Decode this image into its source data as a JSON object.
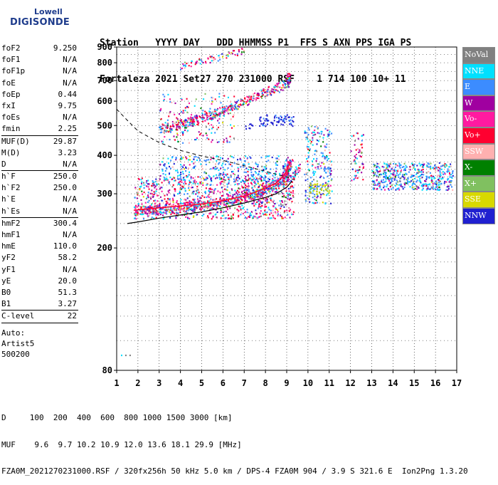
{
  "logo": {
    "line1": "Lowell",
    "line2": "DIGISONDE"
  },
  "header": {
    "line1": "Station   YYYY DAY   DDD HHMMSS P1  FFS S AXN PPS IGA PS",
    "line2": "Fortaleza 2021 Set27 270 231000 RSF    1 714 100 10+ 11"
  },
  "params": [
    [
      {
        "k": "foF2",
        "v": "9.250"
      },
      {
        "k": "foF1",
        "v": "N/A"
      },
      {
        "k": "foF1p",
        "v": "N/A"
      },
      {
        "k": "foE",
        "v": "N/A"
      },
      {
        "k": "foEp",
        "v": "0.44"
      },
      {
        "k": "fxI",
        "v": "9.75"
      },
      {
        "k": "foEs",
        "v": "N/A"
      },
      {
        "k": "fmin",
        "v": "2.25"
      }
    ],
    [
      {
        "k": "MUF(D)",
        "v": "29.87"
      },
      {
        "k": "M(D)",
        "v": "3.23"
      },
      {
        "k": "D",
        "v": "N/A"
      }
    ],
    [
      {
        "k": "h`F",
        "v": "250.0"
      },
      {
        "k": "h`F2",
        "v": "250.0"
      },
      {
        "k": "h`E",
        "v": "N/A"
      },
      {
        "k": "h`Es",
        "v": "N/A"
      }
    ],
    [
      {
        "k": "hmF2",
        "v": "300.4"
      },
      {
        "k": "hmF1",
        "v": "N/A"
      },
      {
        "k": "hmE",
        "v": "110.0"
      },
      {
        "k": "yF2",
        "v": "58.2"
      },
      {
        "k": "yF1",
        "v": "N/A"
      },
      {
        "k": "yE",
        "v": "20.0"
      },
      {
        "k": "B0",
        "v": "51.3"
      },
      {
        "k": "B1",
        "v": "3.27"
      }
    ],
    [
      {
        "k": "C-level",
        "v": "22"
      }
    ]
  ],
  "auto": {
    "line1": "Auto:",
    "line2": "Artist5",
    "line3": "500200"
  },
  "legend": [
    {
      "label": "NoVal",
      "color": "#808080"
    },
    {
      "label": "NNE",
      "color": "#00e0ff"
    },
    {
      "label": "E",
      "color": "#3c8cff"
    },
    {
      "label": "W",
      "color": "#a000a0"
    },
    {
      "label": "Vo-",
      "color": "#ff1aa0"
    },
    {
      "label": "Vo+",
      "color": "#ff0030"
    },
    {
      "label": "SSW",
      "color": "#ffb0b0"
    },
    {
      "label": "X-",
      "color": "#008000"
    },
    {
      "label": "X+",
      "color": "#80c060"
    },
    {
      "label": "SSE",
      "color": "#d8d800"
    },
    {
      "label": "NNW",
      "color": "#2020d0"
    }
  ],
  "footer": {
    "line1": "D     100  200  400  600  800 1000 1500 3000 [km]",
    "line2": "MUF    9.6  9.7 10.2 10.9 12.0 13.6 18.1 29.9 [MHz]",
    "line3": "FZA0M_2021270231000.RSF / 320fx256h 50 kHz 5.0 km / DPS-4 FZA0M 904 / 3.9 S 321.6 E  Ion2Png 1.3.20"
  },
  "chart_data": {
    "type": "scatter",
    "x": {
      "min": 1,
      "max": 17,
      "ticks": [
        1,
        2,
        3,
        4,
        5,
        6,
        7,
        8,
        9,
        10,
        11,
        12,
        13,
        14,
        15,
        16,
        17
      ],
      "unit": "MHz"
    },
    "y": {
      "min": 80,
      "max": 900,
      "ticks": [
        80,
        200,
        300,
        400,
        500,
        600,
        700,
        800,
        900
      ],
      "unit": "km",
      "scale": "log"
    },
    "grid": true,
    "legend_placement": "right",
    "traces": [
      {
        "name": "O-trace F2",
        "color": "#ff0030",
        "points": [
          [
            1.8,
            265
          ],
          [
            2.5,
            268
          ],
          [
            3,
            270
          ],
          [
            4,
            274
          ],
          [
            5,
            278
          ],
          [
            6,
            285
          ],
          [
            7,
            295
          ],
          [
            7.5,
            303
          ],
          [
            8,
            313
          ],
          [
            8.5,
            325
          ],
          [
            8.8,
            340
          ],
          [
            9.0,
            355
          ],
          [
            9.15,
            380
          ]
        ]
      },
      {
        "name": "X-trace F2",
        "color": "#ffb0b0",
        "points": [
          [
            2.5,
            262
          ],
          [
            3.5,
            266
          ],
          [
            4.5,
            270
          ],
          [
            5.5,
            276
          ],
          [
            6.5,
            285
          ],
          [
            7.5,
            298
          ],
          [
            8.5,
            318
          ],
          [
            9.3,
            345
          ],
          [
            9.6,
            370
          ]
        ]
      },
      {
        "name": "multiple echo",
        "color": "#ff0030",
        "points": [
          [
            3,
            490
          ],
          [
            3.5,
            498
          ],
          [
            4,
            508
          ],
          [
            4.5,
            518
          ],
          [
            5,
            530
          ],
          [
            5.5,
            545
          ],
          [
            6,
            560
          ],
          [
            6.5,
            580
          ],
          [
            7,
            600
          ],
          [
            7.5,
            625
          ],
          [
            8,
            645
          ],
          [
            8.5,
            665
          ],
          [
            9,
            690
          ],
          [
            9.1,
            720
          ]
        ]
      },
      {
        "name": "third echo",
        "color": "#a000a0",
        "points": [
          [
            4,
            780
          ],
          [
            4.5,
            800
          ],
          [
            5,
            815
          ],
          [
            5.5,
            830
          ],
          [
            6,
            845
          ],
          [
            6.5,
            860
          ],
          [
            7,
            880
          ]
        ]
      }
    ],
    "profile_curve": [
      [
        1.5,
        240
      ],
      [
        2,
        243
      ],
      [
        3,
        250
      ],
      [
        4,
        256
      ],
      [
        5,
        262
      ],
      [
        6,
        270
      ],
      [
        7,
        280
      ],
      [
        8,
        292
      ],
      [
        8.5,
        300
      ],
      [
        9,
        315
      ],
      [
        9.25,
        330
      ]
    ],
    "dashed_curve": [
      [
        1,
        565
      ],
      [
        1.5,
        520
      ],
      [
        2,
        480
      ],
      [
        3,
        440
      ],
      [
        4,
        415
      ],
      [
        5,
        398
      ],
      [
        6,
        385
      ],
      [
        7,
        370
      ],
      [
        8,
        355
      ],
      [
        9,
        340
      ],
      [
        9.5,
        330
      ]
    ]
  }
}
